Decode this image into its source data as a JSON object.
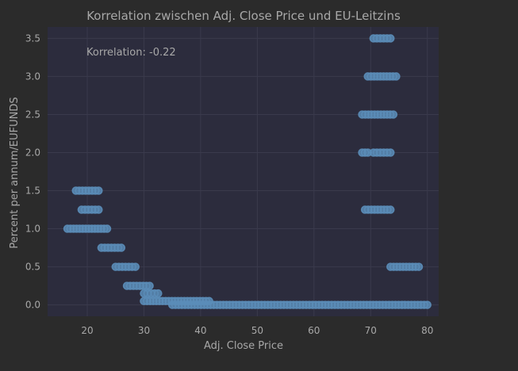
{
  "chart_data": {
    "type": "scatter",
    "title": "Korrelation zwischen Adj. Close Price und EU-Leitzins",
    "xlabel": "Adj. Close Price",
    "ylabel": "Percent per annum/EUFUNDS",
    "annotation": "Korrelation: -0.22",
    "xlim": [
      13,
      82
    ],
    "ylim": [
      -0.15,
      3.65
    ],
    "xticks": [
      20,
      30,
      40,
      50,
      60,
      70,
      80
    ],
    "yticks": [
      0.0,
      0.5,
      1.0,
      1.5,
      2.0,
      2.5,
      3.0,
      3.5
    ],
    "grid": true,
    "series": [
      {
        "color": "#5b8db8",
        "clusters": [
          {
            "y": 1.5,
            "x_min": 18.0,
            "x_max": 22.0
          },
          {
            "y": 1.25,
            "x_min": 19.0,
            "x_max": 22.0
          },
          {
            "y": 1.0,
            "x_min": 16.5,
            "x_max": 23.5
          },
          {
            "y": 0.75,
            "x_min": 22.5,
            "x_max": 26.0
          },
          {
            "y": 0.5,
            "x_min": 25.0,
            "x_max": 28.5
          },
          {
            "y": 0.25,
            "x_min": 27.0,
            "x_max": 31.0
          },
          {
            "y": 0.15,
            "x_min": 30.0,
            "x_max": 32.5
          },
          {
            "y": 0.05,
            "x_min": 30.0,
            "x_max": 41.5
          },
          {
            "y": 0.0,
            "x_min": 35.0,
            "x_max": 80.0
          },
          {
            "y": 3.5,
            "x_min": 70.5,
            "x_max": 73.5
          },
          {
            "y": 3.0,
            "x_min": 69.5,
            "x_max": 74.5
          },
          {
            "y": 2.5,
            "x_min": 68.5,
            "x_max": 74.0
          },
          {
            "y": 2.0,
            "x_min": 68.5,
            "x_max": 69.5
          },
          {
            "y": 2.0,
            "x_min": 70.5,
            "x_max": 73.5
          },
          {
            "y": 1.25,
            "x_min": 69.0,
            "x_max": 73.5
          },
          {
            "y": 0.5,
            "x_min": 73.5,
            "x_max": 78.5
          }
        ]
      }
    ]
  },
  "colors": {
    "figure_bg": "#2b2b2b",
    "plot_bg": "#2c2c3d",
    "grid": "#3a3a4c",
    "text": "#a8a8a8",
    "points": "#5b8db8"
  }
}
